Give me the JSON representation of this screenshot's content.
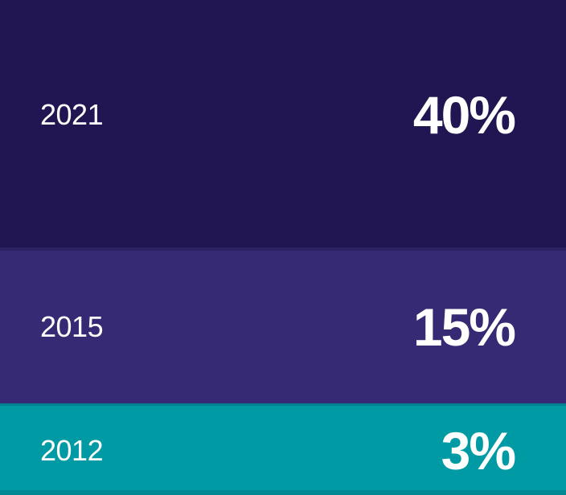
{
  "chart_data": {
    "type": "bar",
    "orientation": "horizontal-stacked-rows",
    "title": "",
    "xlabel": "",
    "ylabel": "",
    "categories": [
      "2021",
      "2015",
      "2012"
    ],
    "values": [
      40,
      15,
      3
    ],
    "unit": "%",
    "value_labels": [
      "40%",
      "15%",
      "3%"
    ],
    "row_colors": [
      "#211652",
      "#372A75",
      "#009AA5"
    ],
    "text_color": "#FFFFFF",
    "grid": false,
    "legend": false
  },
  "rows": [
    {
      "year": "2021",
      "value": "40%",
      "color": "#211652"
    },
    {
      "year": "2015",
      "value": "15%",
      "color": "#372A75"
    },
    {
      "year": "2012",
      "value": "3%",
      "color": "#009AA5"
    }
  ]
}
